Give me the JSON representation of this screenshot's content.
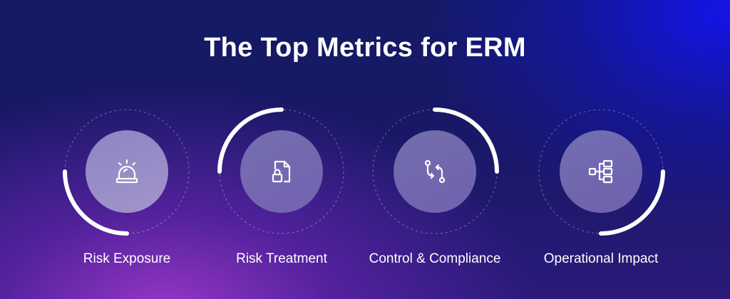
{
  "title": "The Top Metrics for ERM",
  "metrics": [
    {
      "label": "Risk Exposure",
      "icon": "alarm-icon"
    },
    {
      "label": "Risk Treatment",
      "icon": "document-lock-icon"
    },
    {
      "label": "Control & Compliance",
      "icon": "swap-arrows-icon"
    },
    {
      "label": "Operational Impact",
      "icon": "hierarchy-nodes-icon"
    }
  ],
  "colors": {
    "ring": "#ffffff",
    "accent_purple": "#a23fd0",
    "accent_blue": "#1515e0"
  }
}
